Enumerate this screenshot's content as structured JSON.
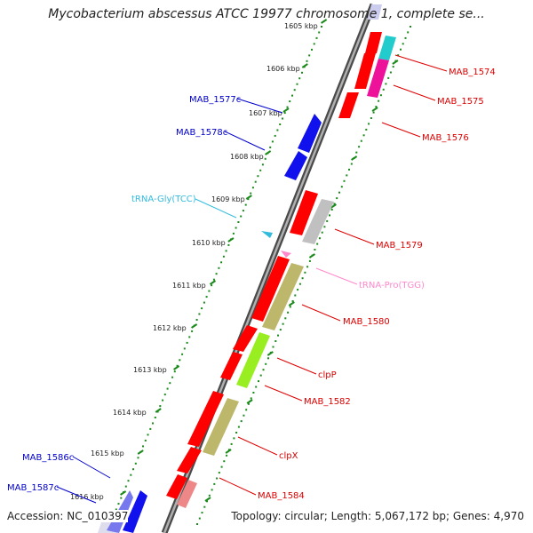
{
  "title": "Mycobacterium abscessus ATCC 19977 chromosome 1, complete se...",
  "footer": {
    "accession": "Accession: NC_010397",
    "summary": "Topology: circular; Length: 5,067,172 bp; Genes: 4,970"
  },
  "colors": {
    "gene": "#ff0000",
    "backbone": "#7a7a7a",
    "tick": "#1a8a1a",
    "label_right": "#dd0000",
    "label_left": "#0000cc",
    "trna_gly": "#33bbdd",
    "trna_pro": "#ff88cc",
    "cds_olive": "#bdb76b",
    "cds_cyan": "#22cccc",
    "cds_magenta": "#ee1199",
    "cds_grey": "#c0c0c0",
    "cds_lime": "#99ee22",
    "cds_pink": "#ee8888",
    "cds_blue": "#1111ee",
    "cds_lightblue": "#7777ee"
  },
  "scale": {
    "unit": "kbp",
    "ticks": [
      "1605 kbp",
      "1606 kbp",
      "1607 kbp",
      "1608 kbp",
      "1609 kbp",
      "1610 kbp",
      "1611 kbp",
      "1612 kbp",
      "1613 kbp",
      "1614 kbp",
      "1615 kbp",
      "1616 kbp"
    ]
  },
  "labels_right": [
    "MAB_1574",
    "MAB_1575",
    "MAB_1576",
    "MAB_1579",
    "MAB_1580",
    "clpP",
    "MAB_1582",
    "clpX",
    "MAB_1584"
  ],
  "labels_left": [
    "MAB_1577c",
    "MAB_1578c",
    "MAB_1586c",
    "MAB_1587c"
  ],
  "trna_labels": [
    "tRNA-Gly(TCC)",
    "tRNA-Pro(TGG)"
  ]
}
